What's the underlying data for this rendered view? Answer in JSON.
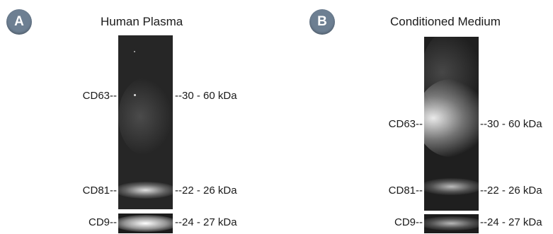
{
  "panels": [
    {
      "badge": "A",
      "title": "Human Plasma",
      "markers": [
        {
          "name": "CD63",
          "left_label": "CD63--",
          "right_label": "--30 - 60 kDa"
        },
        {
          "name": "CD81",
          "left_label": "CD81--",
          "right_label": "--22 - 26 kDa"
        },
        {
          "name": "CD9",
          "left_label": "CD9--",
          "right_label": "--24 - 27 kDa"
        }
      ]
    },
    {
      "badge": "B",
      "title": "Conditioned Medium",
      "markers": [
        {
          "name": "CD63",
          "left_label": "CD63--",
          "right_label": "--30 - 60 kDa"
        },
        {
          "name": "CD81",
          "left_label": "CD81--",
          "right_label": "--22 - 26 kDa"
        },
        {
          "name": "CD9",
          "left_label": "CD9--",
          "right_label": "--24 - 27 kDa"
        }
      ]
    }
  ],
  "colors": {
    "badge": "#6d7f92",
    "blot_background": "#262626"
  }
}
